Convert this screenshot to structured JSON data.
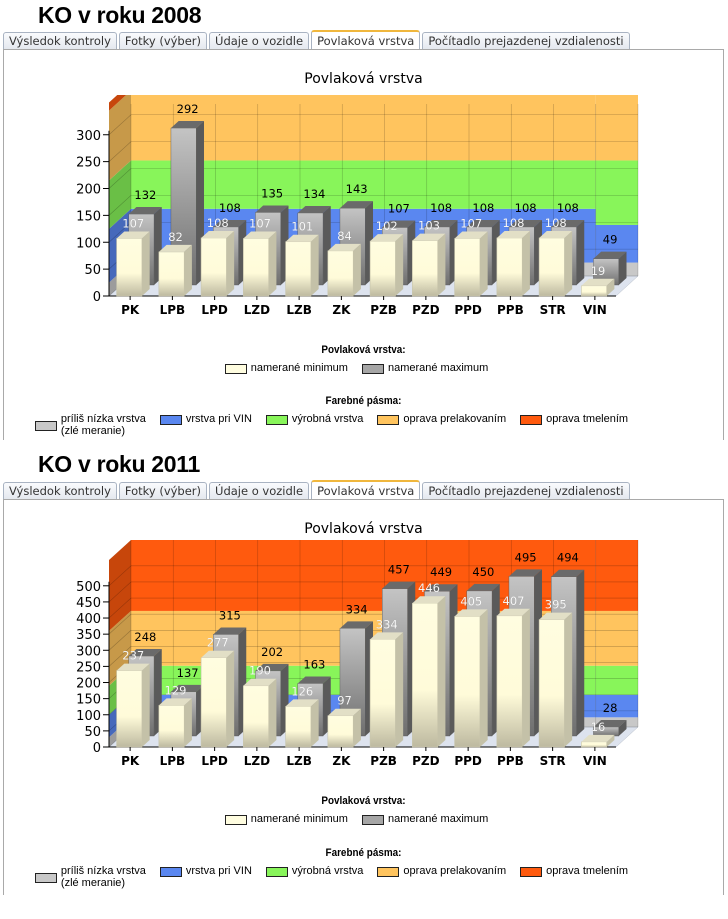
{
  "tabs": [
    "Výsledok kontroly",
    "Fotky (výber)",
    "Údaje o vozidle",
    "Povlaková vrstva",
    "Počítadlo prejazdenej vzdialenosti"
  ],
  "active_tab": 3,
  "legend": {
    "series_title": "Povlaková vrstva:",
    "series": [
      {
        "label": "namerané minimum",
        "color": "#fffde0"
      },
      {
        "label": "namerané maximum",
        "color": "#a6a6a6"
      }
    ],
    "bands_title": "Farebné pásma:",
    "bands": [
      {
        "label": "príliš nízka vrstva",
        "label2": "(zlé meranie)",
        "color": "#c8c8c8"
      },
      {
        "label": "vrstva pri VIN",
        "color": "#5a87f0"
      },
      {
        "label": "výrobná vrstva",
        "color": "#88f55a"
      },
      {
        "label": "oprava prelakovaním",
        "color": "#ffc45e"
      },
      {
        "label": "oprava tmelením",
        "color": "#ff5a0e"
      }
    ]
  },
  "sections": [
    {
      "heading": "KO v roku 2008"
    },
    {
      "heading": "KO v roku 2011"
    }
  ],
  "chart_data": [
    {
      "type": "bar",
      "title": "Povlaková vrstva",
      "categories": [
        "PK",
        "LPB",
        "LPD",
        "LZD",
        "LZB",
        "ZK",
        "PZB",
        "PZD",
        "PPD",
        "PPB",
        "STR",
        "VIN"
      ],
      "series": [
        {
          "name": "namerané minimum",
          "values": [
            107,
            82,
            108,
            107,
            101,
            84,
            102,
            103,
            107,
            108,
            108,
            19
          ]
        },
        {
          "name": "namerané maximum",
          "values": [
            132,
            292,
            108,
            135,
            134,
            143,
            107,
            108,
            108,
            108,
            108,
            49
          ]
        }
      ],
      "yticks": [
        0,
        50,
        100,
        150,
        200,
        250,
        300
      ],
      "ylim": [
        0,
        320
      ],
      "bands": [
        [
          0,
          25
        ],
        [
          25,
          125
        ],
        [
          125,
          215
        ],
        [
          215,
          345
        ],
        [
          345,
          360
        ]
      ],
      "vin_bands": [
        [
          0,
          25
        ],
        [
          25,
          95
        ],
        [
          95,
          215
        ],
        [
          215,
          345
        ],
        [
          345,
          360
        ]
      ],
      "grid": true
    },
    {
      "type": "bar",
      "title": "Povlaková vrstva",
      "categories": [
        "PK",
        "LPB",
        "LPD",
        "LZD",
        "LZB",
        "ZK",
        "PZB",
        "PZD",
        "PPD",
        "PPB",
        "STR",
        "VIN"
      ],
      "series": [
        {
          "name": "namerané minimum",
          "values": [
            237,
            129,
            277,
            190,
            126,
            97,
            334,
            446,
            405,
            407,
            395,
            16
          ]
        },
        {
          "name": "namerané maximum",
          "values": [
            248,
            137,
            315,
            202,
            163,
            334,
            457,
            449,
            450,
            495,
            494,
            28
          ]
        }
      ],
      "yticks": [
        0,
        50,
        100,
        150,
        200,
        250,
        300,
        350,
        400,
        450,
        500
      ],
      "ylim": [
        0,
        580
      ],
      "bands": [
        [
          0,
          30
        ],
        [
          30,
          100
        ],
        [
          100,
          190
        ],
        [
          190,
          360
        ],
        [
          360,
          580
        ]
      ],
      "vin_bands": [
        [
          0,
          30
        ],
        [
          30,
          100
        ],
        [
          100,
          190
        ],
        [
          190,
          360
        ],
        [
          360,
          580
        ]
      ],
      "grid": true
    }
  ]
}
